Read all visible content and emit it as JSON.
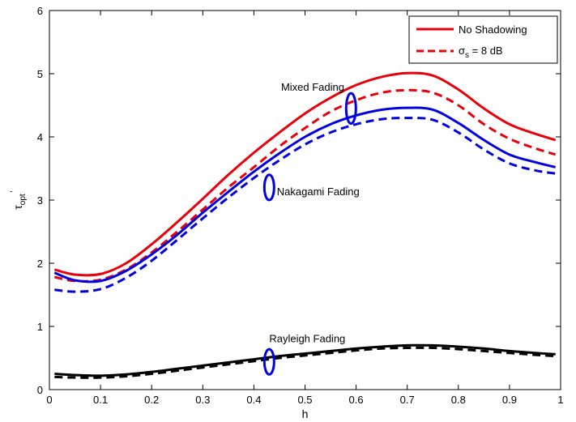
{
  "chart_data": {
    "type": "line",
    "title": "",
    "xlabel": "h",
    "ylabel_main": "τ",
    "ylabel_sub": "opt",
    "ylabel_sup": "'",
    "xlim": [
      0,
      1
    ],
    "ylim": [
      0,
      6
    ],
    "xticks": [
      0,
      0.1,
      0.2,
      0.3,
      0.4,
      0.5,
      0.6,
      0.7,
      0.8,
      0.9,
      1
    ],
    "xtick_labels": [
      "0",
      "0.1",
      "0.2",
      "0.3",
      "0.4",
      "0.5",
      "0.6",
      "0.7",
      "0.8",
      "0.9",
      "1"
    ],
    "yticks": [
      0,
      1,
      2,
      3,
      4,
      5,
      6
    ],
    "ytick_labels": [
      "0",
      "1",
      "2",
      "3",
      "4",
      "5",
      "6"
    ],
    "grid": false,
    "legend_position": "top-right",
    "legend": [
      {
        "label": "No Shadowing",
        "color": "#e8000b",
        "style": "solid"
      },
      {
        "label_main": "σ",
        "label_sub": "s",
        "label_rest": " = 8 dB",
        "color": "#e8000b",
        "style": "dashed"
      }
    ],
    "x": [
      0.01,
      0.05,
      0.1,
      0.15,
      0.2,
      0.25,
      0.3,
      0.35,
      0.4,
      0.45,
      0.5,
      0.55,
      0.6,
      0.65,
      0.7,
      0.75,
      0.8,
      0.85,
      0.9,
      0.95,
      0.99
    ],
    "series": [
      {
        "group": "mixed",
        "style": "solid",
        "color": "#e8000b",
        "values": [
          1.9,
          1.82,
          1.83,
          2.0,
          2.3,
          2.65,
          3.02,
          3.4,
          3.75,
          4.07,
          4.37,
          4.62,
          4.82,
          4.95,
          5.01,
          4.97,
          4.75,
          4.45,
          4.2,
          4.05,
          3.95
        ]
      },
      {
        "group": "mixed",
        "style": "dashed",
        "color": "#e8000b",
        "values": [
          1.78,
          1.72,
          1.74,
          1.9,
          2.17,
          2.5,
          2.85,
          3.2,
          3.52,
          3.85,
          4.14,
          4.4,
          4.58,
          4.7,
          4.74,
          4.7,
          4.5,
          4.2,
          3.97,
          3.82,
          3.72
        ]
      },
      {
        "group": "nakagami",
        "style": "solid",
        "color": "#0000e0",
        "values": [
          1.85,
          1.73,
          1.72,
          1.88,
          2.14,
          2.45,
          2.8,
          3.13,
          3.45,
          3.74,
          4.0,
          4.2,
          4.34,
          4.43,
          4.46,
          4.43,
          4.22,
          3.95,
          3.72,
          3.6,
          3.52
        ]
      },
      {
        "group": "nakagami",
        "style": "dashed",
        "color": "#0000e0",
        "values": [
          1.58,
          1.55,
          1.59,
          1.77,
          2.04,
          2.37,
          2.71,
          3.04,
          3.35,
          3.63,
          3.88,
          4.07,
          4.2,
          4.28,
          4.3,
          4.27,
          4.07,
          3.8,
          3.58,
          3.47,
          3.42
        ]
      },
      {
        "group": "rayleigh",
        "style": "solid",
        "color": "#000000",
        "values": [
          0.25,
          0.23,
          0.22,
          0.24,
          0.28,
          0.33,
          0.38,
          0.43,
          0.48,
          0.53,
          0.57,
          0.61,
          0.65,
          0.68,
          0.7,
          0.7,
          0.68,
          0.65,
          0.61,
          0.58,
          0.56
        ]
      },
      {
        "group": "rayleigh",
        "style": "dashed",
        "color": "#000000",
        "values": [
          0.2,
          0.19,
          0.19,
          0.21,
          0.25,
          0.3,
          0.35,
          0.4,
          0.45,
          0.5,
          0.54,
          0.58,
          0.62,
          0.65,
          0.66,
          0.66,
          0.64,
          0.61,
          0.58,
          0.55,
          0.53
        ]
      }
    ],
    "annotations": [
      {
        "text": "Mixed Fading",
        "x": 0.515,
        "y": 4.73,
        "anchor": "middle",
        "ellipse": {
          "cx": 0.59,
          "cy": 4.45,
          "ry": 0.24
        }
      },
      {
        "text": "Nakagami Fading",
        "x": 0.445,
        "y": 3.08,
        "anchor": "start",
        "ellipse": {
          "cx": 0.43,
          "cy": 3.2,
          "ry": 0.2
        }
      },
      {
        "text": "Rayleigh Fading",
        "x": 0.43,
        "y": 0.75,
        "anchor": "start",
        "ellipse": {
          "cx": 0.43,
          "cy": 0.44,
          "ry": 0.2
        }
      }
    ]
  }
}
